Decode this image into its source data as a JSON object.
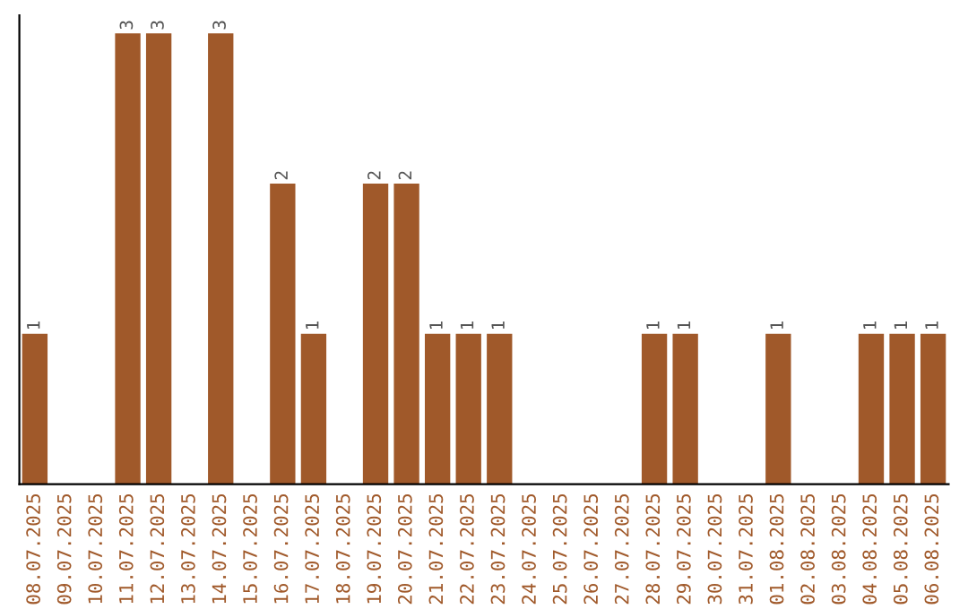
{
  "chart_data": {
    "type": "bar",
    "color": "#a0592a",
    "categories": [
      "08.07.2025",
      "09.07.2025",
      "10.07.2025",
      "11.07.2025",
      "12.07.2025",
      "13.07.2025",
      "14.07.2025",
      "15.07.2025",
      "16.07.2025",
      "17.07.2025",
      "18.07.2025",
      "19.07.2025",
      "20.07.2025",
      "21.07.2025",
      "22.07.2025",
      "23.07.2025",
      "24.07.2025",
      "25.07.2025",
      "26.07.2025",
      "27.07.2025",
      "28.07.2025",
      "29.07.2025",
      "30.07.2025",
      "31.07.2025",
      "01.08.2025",
      "02.08.2025",
      "03.08.2025",
      "04.08.2025",
      "05.08.2025",
      "06.08.2025"
    ],
    "values": [
      1,
      0,
      0,
      3,
      3,
      0,
      3,
      0,
      2,
      1,
      0,
      2,
      2,
      1,
      1,
      1,
      0,
      0,
      0,
      0,
      1,
      1,
      0,
      0,
      1,
      0,
      0,
      1,
      1,
      1
    ],
    "value_labels": [
      "1",
      null,
      null,
      "3",
      "3",
      null,
      "3",
      null,
      "2",
      "1",
      null,
      "2",
      "2",
      "1",
      "1",
      "1",
      null,
      null,
      null,
      null,
      "1",
      "1",
      null,
      null,
      "1",
      null,
      null,
      "1",
      "1",
      "1"
    ],
    "tick_labels": "x",
    "grid": false
  }
}
